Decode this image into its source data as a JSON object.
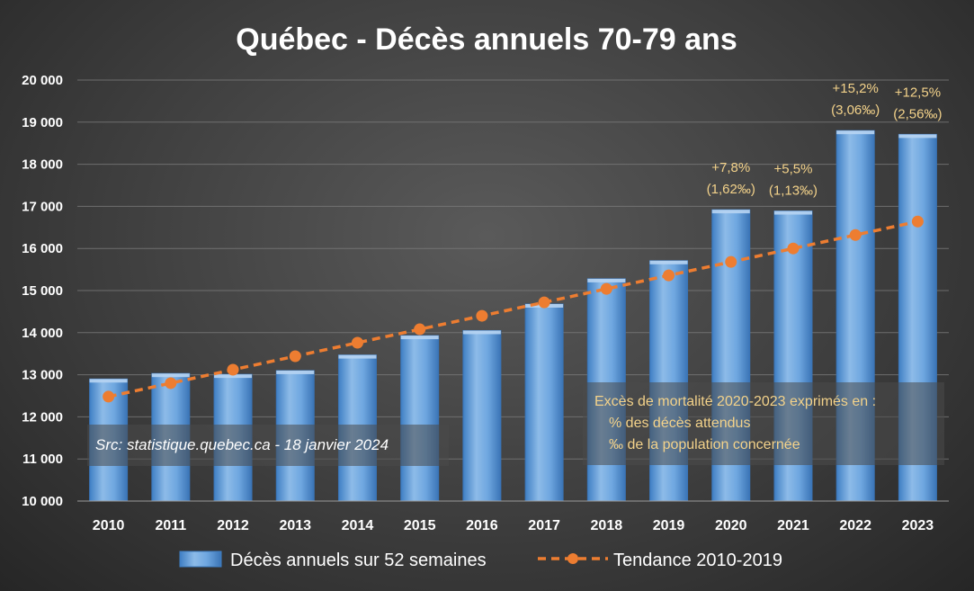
{
  "chart_data": {
    "type": "bar",
    "title": "Québec - Décès annuels 70-79 ans",
    "categories": [
      "2010",
      "2011",
      "2012",
      "2013",
      "2014",
      "2015",
      "2016",
      "2017",
      "2018",
      "2019",
      "2020",
      "2021",
      "2022",
      "2023"
    ],
    "series": [
      {
        "name": "Décès annuels sur 52 semaines",
        "kind": "bar",
        "values": [
          12900,
          13030,
          13010,
          13100,
          13470,
          13930,
          14050,
          14680,
          15280,
          15710,
          16920,
          16890,
          18800,
          18710
        ]
      },
      {
        "name": "Tendance 2010-2019",
        "kind": "line",
        "values": [
          12480,
          12800,
          13120,
          13440,
          13760,
          14080,
          14400,
          14720,
          15040,
          15360,
          15680,
          16000,
          16320,
          16640
        ]
      }
    ],
    "y_tick_labels": [
      "10 000",
      "11 000",
      "12 000",
      "13 000",
      "14 000",
      "15 000",
      "16 000",
      "17 000",
      "18 000",
      "19 000",
      "20 000"
    ],
    "ylim": [
      10000,
      20000
    ],
    "annotations": [
      {
        "category": "2020",
        "line1": "+7,8%",
        "line2": "(1,62‰)"
      },
      {
        "category": "2021",
        "line1": "+5,5%",
        "line2": "(1,13‰)"
      },
      {
        "category": "2022",
        "line1": "+15,2%",
        "line2": "(3,06‰)"
      },
      {
        "category": "2023",
        "line1": "+12,5%",
        "line2": "(2,56‰)"
      }
    ],
    "source": "Src: statistique.quebec.ca - 18 janvier 2024",
    "note": {
      "line1": "Excès de mortalité 2020-2023 exprimés en :",
      "line2": "% des décès attendus",
      "line3": "‰ de la population concernée"
    },
    "legend_labels": [
      "Décès annuels sur 52 semaines",
      "Tendance 2010-2019"
    ],
    "colors": {
      "bar": "#5b9bd5",
      "bar_light": "#9cc3ea",
      "bar_dark": "#3f7fc4",
      "trend": "#ed7d31",
      "annotation": "#f3d28a"
    }
  }
}
